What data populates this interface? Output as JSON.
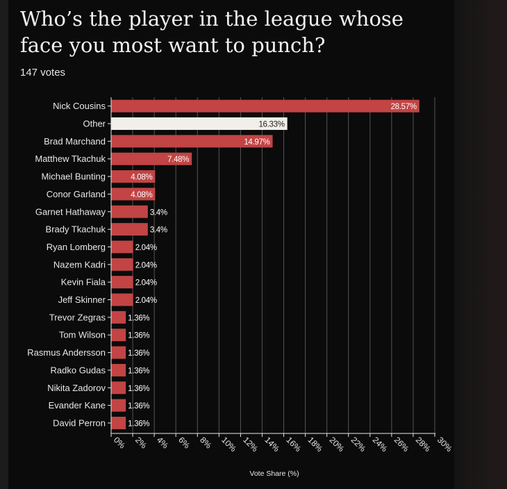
{
  "title": "Who’s the player in the league whose face you most want to punch?",
  "votes_label": "147 votes",
  "colors": {
    "bar": "#c24444",
    "highlight": "#f1efe9",
    "grid": "#555555",
    "text": "#e8e8e8",
    "background": "#0b0b0b"
  },
  "chart_data": {
    "type": "bar",
    "orientation": "horizontal",
    "categories": [
      "Nick Cousins",
      "Other",
      "Brad Marchand",
      "Matthew Tkachuk",
      "Michael Bunting",
      "Conor Garland",
      "Garnet Hathaway",
      "Brady Tkachuk",
      "Ryan Lomberg",
      "Nazem Kadri",
      "Kevin Fiala",
      "Jeff Skinner",
      "Trevor Zegras",
      "Tom Wilson",
      "Rasmus Andersson",
      "Radko Gudas",
      "Nikita Zadorov",
      "Evander Kane",
      "David Perron"
    ],
    "values": [
      28.57,
      16.33,
      14.97,
      7.48,
      4.08,
      4.08,
      3.4,
      3.4,
      2.04,
      2.04,
      2.04,
      2.04,
      1.36,
      1.36,
      1.36,
      1.36,
      1.36,
      1.36,
      1.36
    ],
    "value_labels": [
      "28.57%",
      "16.33%",
      "14.97%",
      "7.48%",
      "4.08%",
      "4.08%",
      "3.4%",
      "3.4%",
      "2.04%",
      "2.04%",
      "2.04%",
      "2.04%",
      "1.36%",
      "1.36%",
      "1.36%",
      "1.36%",
      "1.36%",
      "1.36%",
      "1.36%"
    ],
    "highlight_category": "Other",
    "xlabel": "Vote Share (%)",
    "xlim": [
      0,
      30
    ],
    "xticks": [
      0,
      2,
      4,
      6,
      8,
      10,
      12,
      14,
      16,
      18,
      20,
      22,
      24,
      26,
      28,
      30
    ],
    "xtick_labels": [
      "0%",
      "2%",
      "4%",
      "6%",
      "8%",
      "10%",
      "12%",
      "14%",
      "16%",
      "18%",
      "20%",
      "22%",
      "24%",
      "26%",
      "28%",
      "30%"
    ],
    "grid": true
  }
}
